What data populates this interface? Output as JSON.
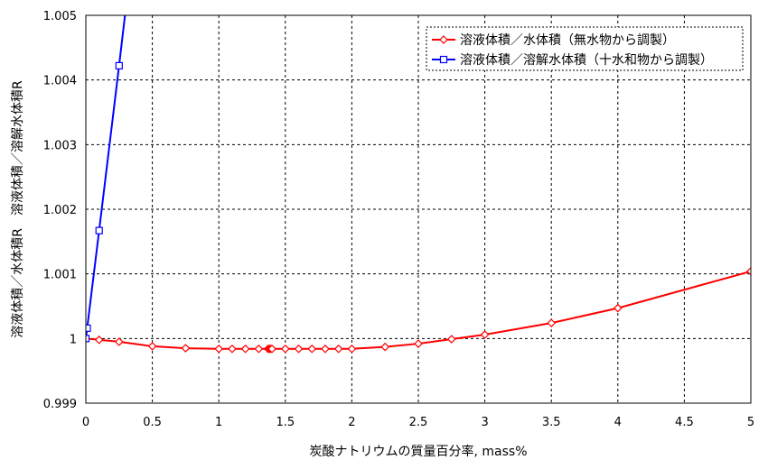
{
  "chart_data": {
    "type": "line",
    "xlabel": "炭酸ナトリウムの質量百分率, mass%",
    "ylabel": "溶液体積／水体積R　溶液体積／溶解水体積R",
    "xlim": [
      0,
      5
    ],
    "ylim": [
      0.999,
      1.005
    ],
    "x_ticks": [
      "0",
      "0.5",
      "1",
      "1.5",
      "2",
      "2.5",
      "3",
      "3.5",
      "4",
      "4.5",
      "5"
    ],
    "y_ticks": [
      "0.999",
      "1",
      "1.001",
      "1.002",
      "1.003",
      "1.004",
      "1.005"
    ],
    "grid": true,
    "legend_position": "top-right",
    "series": [
      {
        "name": "溶液体積／水体積（無水物から調製）",
        "color": "#ff0000",
        "marker": "diamond",
        "x": [
          0,
          0.1,
          0.25,
          0.5,
          0.75,
          1.0,
          1.1,
          1.2,
          1.3,
          1.37,
          1.38,
          1.39,
          1.4,
          1.5,
          1.6,
          1.7,
          1.8,
          1.9,
          2.0,
          2.25,
          2.5,
          2.75,
          3.0,
          3.5,
          4.0,
          5.0
        ],
        "y": [
          1.0,
          0.99998,
          0.99995,
          0.99988,
          0.99985,
          0.99984,
          0.99984,
          0.99984,
          0.99984,
          0.99984,
          0.99984,
          0.99984,
          0.99984,
          0.99984,
          0.99984,
          0.99984,
          0.99984,
          0.99984,
          0.99984,
          0.99987,
          0.99992,
          0.99999,
          1.00006,
          1.00024,
          1.00047,
          1.00104
        ]
      },
      {
        "name": "溶液体積／溶解水体積（十水和物から調製）",
        "color": "#0000ff",
        "marker": "square",
        "x": [
          0,
          0.01,
          0.1,
          0.25,
          0.32
        ],
        "y": [
          1.0,
          1.00016,
          1.00167,
          1.00422,
          1.00545
        ]
      }
    ]
  }
}
